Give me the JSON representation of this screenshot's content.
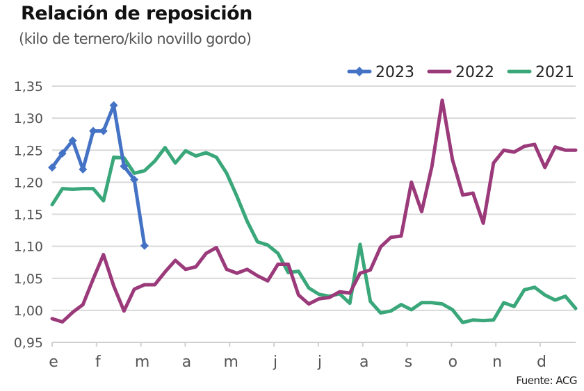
{
  "header": {
    "title": "Relación de reposición",
    "subtitle": "(kilo de ternero/kilo novillo gordo)"
  },
  "footer": {
    "source": "Fuente: ACG"
  },
  "colors": {
    "s2023": "#4472C4",
    "s2022": "#9B3A7A",
    "s2021": "#3AA77A",
    "grid": "#d9d9d9",
    "axis": "#cfcfcf"
  },
  "chart_data": {
    "type": "line",
    "title": "Relación de reposición",
    "subtitle": "(kilo de ternero/kilo novillo gordo)",
    "xlabel": "",
    "ylabel": "",
    "ylim": [
      0.95,
      1.35
    ],
    "yticks": [
      0.95,
      1.0,
      1.05,
      1.1,
      1.15,
      1.2,
      1.25,
      1.3,
      1.35
    ],
    "ytick_labels": [
      "0,95",
      "1,00",
      "1,05",
      "1,10",
      "1,15",
      "1,20",
      "1,25",
      "1,30",
      "1,35"
    ],
    "categories": [
      "e",
      "f",
      "m",
      "a",
      "m",
      "j",
      "j",
      "a",
      "s",
      "o",
      "n",
      "d"
    ],
    "x_unit": "week of year (1-52)",
    "grid": true,
    "legend_position": "top-right",
    "series": [
      {
        "name": "2023",
        "marker": "diamond",
        "values": [
          1.223,
          1.245,
          1.265,
          1.22,
          1.28,
          1.28,
          1.32,
          1.225,
          1.204,
          1.101
        ]
      },
      {
        "name": "2022",
        "marker": "none",
        "values": [
          0.987,
          0.982,
          0.997,
          1.009,
          1.049,
          1.087,
          1.038,
          0.999,
          1.033,
          1.04,
          1.04,
          1.06,
          1.078,
          1.064,
          1.068,
          1.089,
          1.098,
          1.064,
          1.058,
          1.064,
          1.054,
          1.046,
          1.072,
          1.072,
          1.024,
          1.01,
          1.018,
          1.02,
          1.029,
          1.027,
          1.058,
          1.063,
          1.099,
          1.114,
          1.116,
          1.2,
          1.154,
          1.225,
          1.328,
          1.235,
          1.18,
          1.183,
          1.136,
          1.23,
          1.25,
          1.247,
          1.256,
          1.259,
          1.223,
          1.255,
          1.25,
          1.25
        ]
      },
      {
        "name": "2021",
        "marker": "none",
        "values": [
          1.165,
          1.19,
          1.189,
          1.19,
          1.19,
          1.171,
          1.239,
          1.238,
          1.214,
          1.218,
          1.233,
          1.254,
          1.23,
          1.249,
          1.241,
          1.246,
          1.239,
          1.214,
          1.178,
          1.139,
          1.107,
          1.102,
          1.089,
          1.059,
          1.061,
          1.035,
          1.025,
          1.022,
          1.026,
          1.011,
          1.103,
          1.014,
          0.996,
          0.999,
          1.009,
          1.001,
          1.012,
          1.012,
          1.01,
          1.001,
          0.981,
          0.985,
          0.984,
          0.985,
          1.012,
          1.006,
          1.032,
          1.036,
          1.024,
          1.016,
          1.022,
          1.003
        ]
      }
    ]
  }
}
